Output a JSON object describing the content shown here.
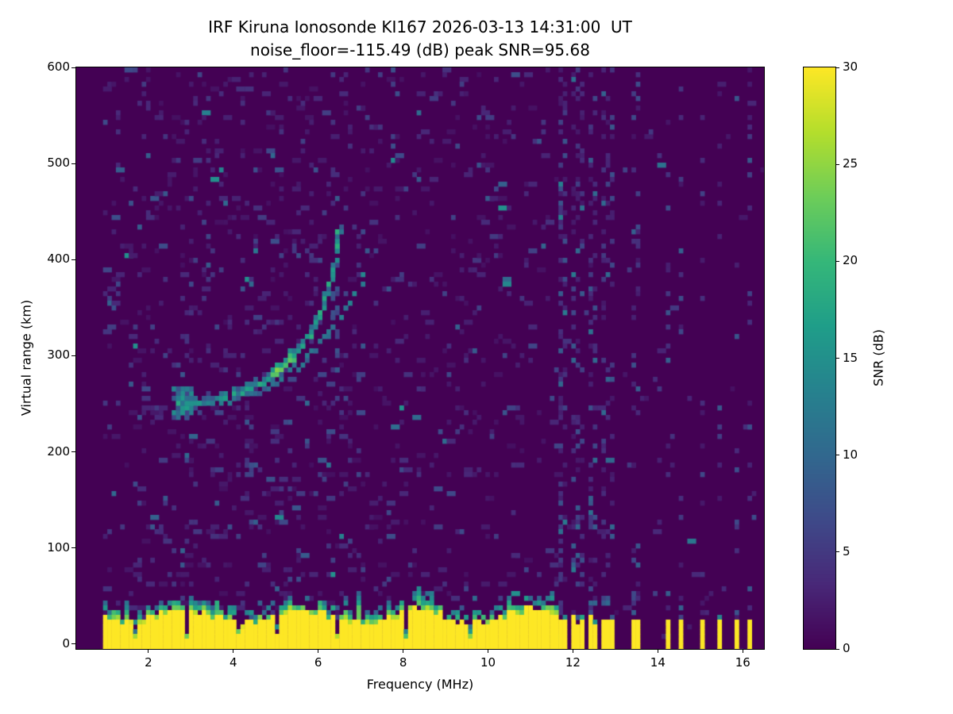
{
  "chart_data": {
    "type": "heatmap",
    "title": "IRF Kiruna Ionosonde KI167 2026-03-13 14:31:00  UT",
    "subtitle": "noise_floor=-115.49 (dB) peak SNR=95.68",
    "station": "IRF Kiruna Ionosonde KI167",
    "timestamp_ut": "2026-03-13 14:31:00",
    "noise_floor_db": -115.49,
    "peak_snr_db": 95.68,
    "xlabel": "Frequency (MHz)",
    "ylabel": "Virtual range (km)",
    "xlim": [
      0.3,
      16.5
    ],
    "ylim": [
      -5,
      600
    ],
    "x_ticks": [
      2,
      4,
      6,
      8,
      10,
      12,
      14,
      16
    ],
    "y_ticks": [
      0,
      100,
      200,
      300,
      400,
      500,
      600
    ],
    "colormap": "viridis",
    "colorbar": {
      "label": "SNR (dB)",
      "min": 0,
      "max": 30,
      "ticks": [
        0,
        5,
        10,
        15,
        20,
        25,
        30
      ]
    },
    "data_freq_start": 0.93,
    "ground_clutter": {
      "full_band_fmax": 11.66,
      "band_top_km": 24,
      "notches": [
        1.65,
        2.88,
        4.08,
        5.02,
        6.44,
        8.06,
        9.58
      ],
      "bars": [
        11.7,
        11.84,
        11.98,
        12.12,
        12.26,
        12.4,
        12.54,
        12.68,
        12.82,
        12.96,
        13.45,
        13.52,
        14.2,
        14.55,
        15.05,
        15.42,
        15.9,
        16.2
      ]
    },
    "interference_columns": [
      {
        "f": 11.7,
        "p": 0.4,
        "smax": 13
      },
      {
        "f": 11.84,
        "p": 0.3,
        "smax": 12
      },
      {
        "f": 11.98,
        "p": 0.28,
        "smax": 12
      },
      {
        "f": 12.12,
        "p": 0.26,
        "smax": 11
      },
      {
        "f": 12.26,
        "p": 0.26,
        "smax": 11
      },
      {
        "f": 12.4,
        "p": 0.24,
        "smax": 11
      },
      {
        "f": 12.54,
        "p": 0.22,
        "smax": 10
      },
      {
        "f": 12.68,
        "p": 0.22,
        "smax": 10
      },
      {
        "f": 12.82,
        "p": 0.2,
        "smax": 10
      },
      {
        "f": 12.96,
        "p": 0.2,
        "smax": 10
      },
      {
        "f": 13.45,
        "p": 0.16,
        "smax": 9
      },
      {
        "f": 13.52,
        "p": 0.12,
        "smax": 9
      },
      {
        "f": 14.2,
        "p": 0.14,
        "smax": 9
      },
      {
        "f": 14.55,
        "p": 0.12,
        "smax": 9
      },
      {
        "f": 15.05,
        "p": 0.12,
        "smax": 9
      },
      {
        "f": 15.42,
        "p": 0.1,
        "smax": 8
      },
      {
        "f": 15.9,
        "p": 0.1,
        "smax": 8
      },
      {
        "f": 16.2,
        "p": 0.1,
        "smax": 8
      }
    ],
    "echo_traces": [
      {
        "name": "main-f-layer-trace",
        "points": [
          [
            2.68,
            250
          ],
          [
            2.9,
            248
          ],
          [
            3.1,
            250
          ],
          [
            3.35,
            251
          ],
          [
            3.6,
            253
          ],
          [
            3.85,
            256
          ],
          [
            4.1,
            260
          ],
          [
            4.35,
            264
          ],
          [
            4.6,
            269
          ],
          [
            4.85,
            276
          ],
          [
            5.05,
            284
          ],
          [
            5.25,
            292
          ],
          [
            5.45,
            301
          ],
          [
            5.65,
            312
          ],
          [
            5.85,
            326
          ],
          [
            6.05,
            343
          ],
          [
            6.2,
            362
          ],
          [
            6.32,
            383
          ],
          [
            6.42,
            405
          ],
          [
            6.48,
            422
          ],
          [
            6.52,
            434
          ]
        ],
        "snr_base": 11,
        "snr_var": 8,
        "gap": 0.22,
        "thickness": 2,
        "peak": {
          "fmin": 4.9,
          "fmax": 5.5,
          "boost": 10
        }
      },
      {
        "name": "secondary-trace",
        "points": [
          [
            3.8,
            250
          ],
          [
            4.1,
            254
          ],
          [
            4.4,
            259
          ],
          [
            4.7,
            265
          ],
          [
            5.0,
            272
          ],
          [
            5.3,
            281
          ],
          [
            5.6,
            292
          ],
          [
            5.9,
            305
          ],
          [
            6.2,
            320
          ],
          [
            6.5,
            338
          ],
          [
            6.75,
            355
          ],
          [
            6.95,
            370
          ],
          [
            7.1,
            381
          ],
          [
            7.2,
            390
          ]
        ],
        "snr_base": 8,
        "snr_var": 6,
        "gap": 0.42,
        "thickness": 1
      }
    ],
    "scatter_patches": [
      {
        "f": [
          2.6,
          3.05
        ],
        "r": [
          235,
          268
        ],
        "n": 55,
        "snr": [
          6,
          16
        ]
      },
      {
        "f": [
          6.36,
          6.5
        ],
        "r": [
          255,
          420
        ],
        "n": 16,
        "snr": [
          5,
          10
        ]
      },
      {
        "f": [
          4.28,
          4.45
        ],
        "r": [
          175,
          245
        ],
        "n": 10,
        "snr": [
          4,
          8
        ]
      }
    ]
  }
}
